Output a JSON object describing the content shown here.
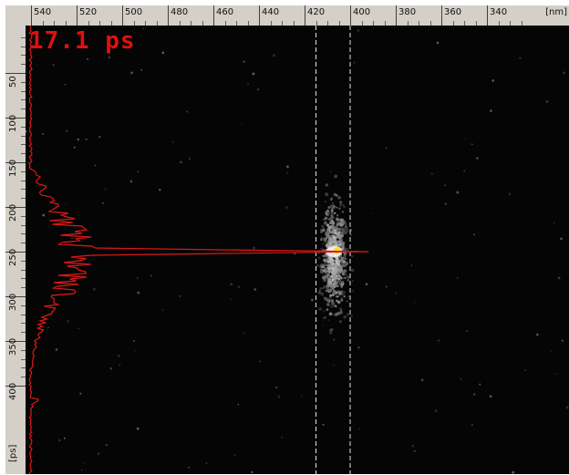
{
  "viewer": {
    "time_readout": "17.1 ps",
    "top_axis": {
      "unit": "[nm]",
      "labels": [
        "540",
        "520",
        "500",
        "480",
        "460",
        "440",
        "420",
        "400",
        "380",
        "360",
        "340"
      ],
      "values": [
        540,
        520,
        500,
        480,
        460,
        440,
        420,
        400,
        380,
        360,
        340
      ]
    },
    "left_axis": {
      "unit": "[ps]",
      "labels": [
        "50",
        "100",
        "150",
        "200",
        "250",
        "300",
        "350",
        "400"
      ],
      "values": [
        50,
        100,
        150,
        200,
        250,
        300,
        350,
        400
      ]
    },
    "colors": {
      "background": "#050505",
      "profile_curve": "#e01818",
      "roi_lines": "#f0e0e0",
      "readout": "#e01010",
      "hotspot": "#ffe000",
      "ruler": "#d4d0c8"
    },
    "roi_nm": [
      415,
      400
    ],
    "peak": {
      "wavelength_nm": 407,
      "time_ps": 250
    }
  }
}
